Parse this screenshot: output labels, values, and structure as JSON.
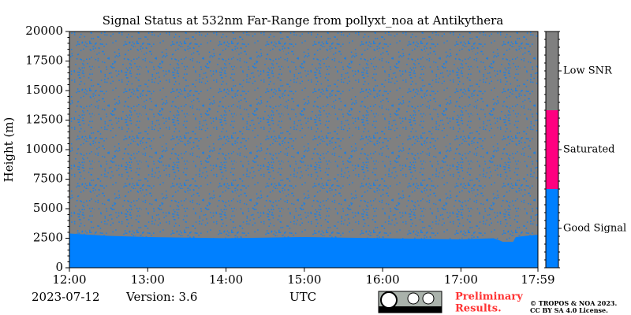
{
  "chart_data": {
    "type": "heatmap",
    "title": "Signal Status at 532nm Far-Range from pollyxt_noa at Antikythera",
    "ylabel": "Height (m)",
    "xlabel": "UTC",
    "date": "2023-07-12",
    "version": "Version: 3.6",
    "notice": [
      "Preliminary",
      "Results."
    ],
    "copyright": [
      "© TROPOS & NOA 2023.",
      "CC BY SA 4.0 License."
    ],
    "xlim": [
      720,
      1079
    ],
    "xticks": [
      {
        "value": 720,
        "label": "12:00"
      },
      {
        "value": 780,
        "label": "13:00"
      },
      {
        "value": 840,
        "label": "14:00"
      },
      {
        "value": 900,
        "label": "15:00"
      },
      {
        "value": 960,
        "label": "16:00"
      },
      {
        "value": 1020,
        "label": "17:00"
      },
      {
        "value": 1079,
        "label": "17:59"
      }
    ],
    "ylim": [
      0,
      20000
    ],
    "yticks": [
      0,
      2500,
      5000,
      7500,
      10000,
      12500,
      15000,
      17500,
      20000
    ],
    "background_color": "#808080",
    "boundary": {
      "color": "#0080ff",
      "x": [
        720,
        735,
        750,
        780,
        810,
        840,
        870,
        900,
        930,
        960,
        990,
        1020,
        1045,
        1050,
        1052,
        1060,
        1062,
        1070,
        1079
      ],
      "values": [
        2900,
        2800,
        2700,
        2600,
        2550,
        2500,
        2550,
        2600,
        2550,
        2500,
        2450,
        2400,
        2500,
        2300,
        2200,
        2200,
        2600,
        2700,
        2800
      ]
    },
    "colorbar": {
      "categories": [
        "Good Signal",
        "Saturated",
        "Low SNR"
      ],
      "colors": [
        "#0080ff",
        "#ff0080",
        "#808080"
      ]
    }
  }
}
